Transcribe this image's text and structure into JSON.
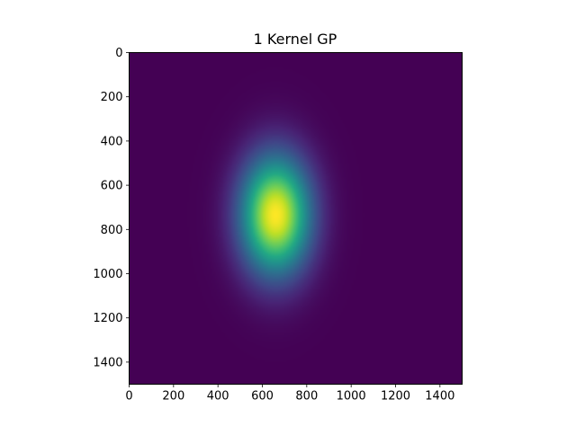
{
  "chart_data": {
    "type": "heatmap",
    "title": "1 Kernel GP",
    "xlabel": "",
    "ylabel": "",
    "x_range": [
      0,
      1500
    ],
    "y_range": [
      0,
      1500
    ],
    "y_inverted": true,
    "x_ticks": [
      0,
      200,
      400,
      600,
      800,
      1000,
      1200,
      1400
    ],
    "y_ticks": [
      0,
      200,
      400,
      600,
      800,
      1000,
      1200,
      1400
    ],
    "grid": false,
    "colormap": "viridis",
    "colorbar": false,
    "field": {
      "shape": "gaussian",
      "peak_center": [
        660,
        735
      ],
      "sigma": [
        110,
        185
      ],
      "min_value": 0,
      "max_value": 1
    }
  }
}
